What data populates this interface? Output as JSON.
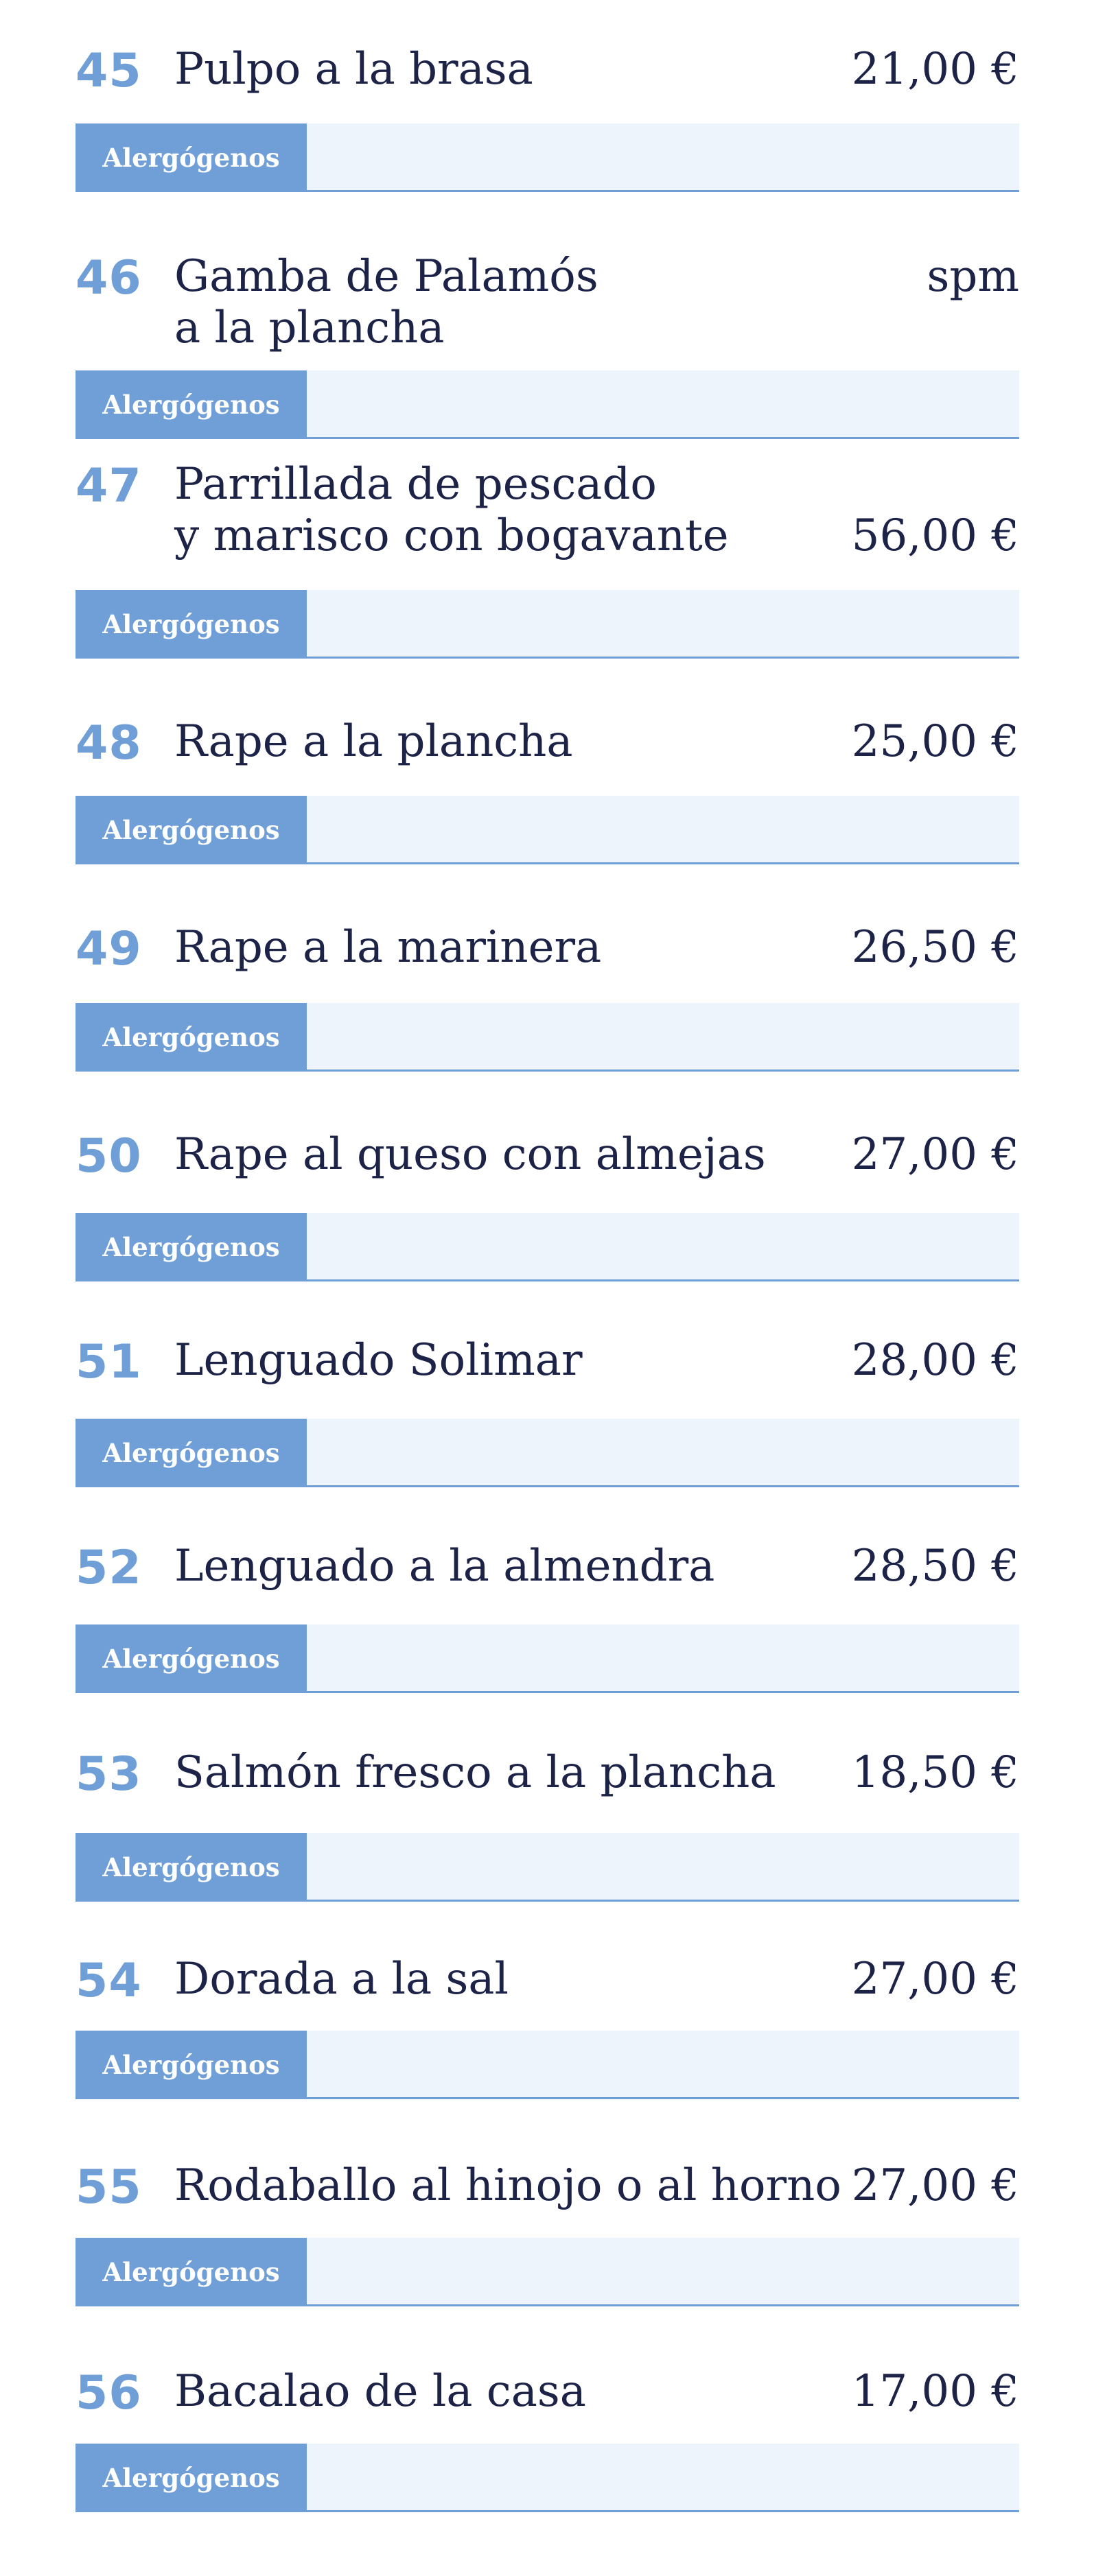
{
  "colors": {
    "number": "#6f9fd6",
    "text": "#1c2347",
    "allergen_button": "#6f9fd6",
    "allergen_bar_bg": "#eef4fc",
    "allergen_bar_border": "#6f9fd6",
    "allergen_label_text": "#ffffff"
  },
  "allergen_label": "Alergógenos",
  "items": [
    {
      "number": "45",
      "name_lines": [
        "Pulpo a la brasa"
      ],
      "price": "21,00 €"
    },
    {
      "number": "46",
      "name_lines": [
        "Gamba de Palamós",
        "a la plancha"
      ],
      "price": "spm"
    },
    {
      "number": "47",
      "name_lines": [
        "Parrillada de pescado",
        "y marisco con bogavante"
      ],
      "price": "56,00 €"
    },
    {
      "number": "48",
      "name_lines": [
        "Rape a la plancha"
      ],
      "price": "25,00 €"
    },
    {
      "number": "49",
      "name_lines": [
        "Rape a la marinera"
      ],
      "price": "26,50 €"
    },
    {
      "number": "50",
      "name_lines": [
        "Rape al queso con almejas"
      ],
      "price": "27,00 €"
    },
    {
      "number": "51",
      "name_lines": [
        "Lenguado Solimar"
      ],
      "price": "28,00 €"
    },
    {
      "number": "52",
      "name_lines": [
        "Lenguado a la almendra"
      ],
      "price": "28,50 €"
    },
    {
      "number": "53",
      "name_lines": [
        "Salmón fresco a la plancha"
      ],
      "price": "18,50 €"
    },
    {
      "number": "54",
      "name_lines": [
        "Dorada a la sal"
      ],
      "price": "27,00 €"
    },
    {
      "number": "55",
      "name_lines": [
        "Rodaballo al hinojo o al horno"
      ],
      "price": "27,00 €"
    },
    {
      "number": "56",
      "name_lines": [
        "Bacalao de la casa"
      ],
      "price": "17,00 €"
    }
  ]
}
